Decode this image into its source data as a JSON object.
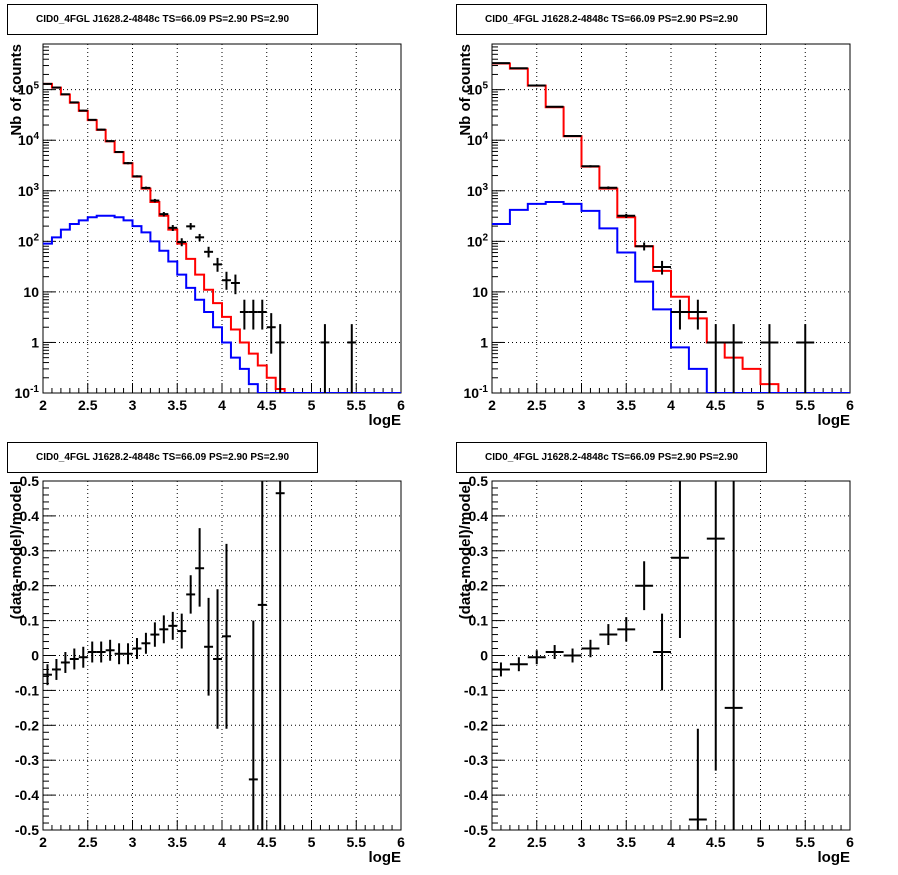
{
  "charts": [
    {
      "id": "p1",
      "title": "CID0_4FGL J1628.2-4848c TS=66.09 PS=2.90 PS=2.90",
      "type": "line",
      "xlabel": "logE",
      "ylabel": "Nb of counts",
      "xlim": [
        2,
        6
      ],
      "ylim": [
        0.1,
        800000
      ],
      "log_y": true,
      "grid": true,
      "x_ticks": [
        "2",
        "2.5",
        "3",
        "3.5",
        "4",
        "4.5",
        "5",
        "5.5",
        "6"
      ],
      "y_ticks": [
        "10^-1",
        "1",
        "10",
        "10^2",
        "10^3",
        "10^4",
        "10^5"
      ],
      "y_tick_values": [
        0.1,
        1,
        10,
        100,
        1000,
        10000,
        100000
      ],
      "bin_edges": [
        2.0,
        2.1,
        2.2,
        2.3,
        2.4,
        2.5,
        2.6,
        2.7,
        2.8,
        2.9,
        3.0,
        3.1,
        3.2,
        3.3,
        3.4,
        3.5,
        3.6,
        3.7,
        3.8,
        3.9,
        4.0,
        4.1,
        4.2,
        4.3,
        4.4,
        4.5,
        4.6,
        4.7,
        4.8,
        4.9,
        5.0,
        5.1,
        5.2,
        5.3,
        5.4,
        5.5,
        5.6,
        5.7,
        5.8,
        5.9,
        6.0
      ],
      "series": [
        {
          "color": "#ff0000",
          "values": [
            130000,
            110000,
            80000,
            55000,
            38000,
            25000,
            16000,
            9500,
            5800,
            3500,
            1900,
            1100,
            600,
            320,
            170,
            90,
            45,
            22,
            11,
            6,
            3.2,
            1.8,
            1.0,
            0.6,
            0.35,
            0.2,
            0.12,
            0.08,
            0.05,
            0.05,
            0.05,
            0.05,
            0.05,
            0.05,
            0.05,
            0.05,
            0.05,
            0.05,
            0.05,
            0.05
          ]
        },
        {
          "color": "#0000ff",
          "values": [
            90,
            120,
            170,
            220,
            260,
            300,
            320,
            320,
            300,
            260,
            200,
            150,
            100,
            65,
            40,
            22,
            12,
            7,
            4,
            2,
            1,
            0.5,
            0.3,
            0.15,
            0.05,
            0.05,
            0.05,
            0.05,
            0.05,
            0.05,
            0.05,
            0.05,
            0.05,
            0.05,
            0.05,
            0.05,
            0.05,
            0.05,
            0.05,
            0.05
          ]
        }
      ],
      "points": [
        {
          "x": 2.05,
          "y": 130000,
          "lo": 125000,
          "hi": 135000
        },
        {
          "x": 2.15,
          "y": 110000,
          "lo": 106000,
          "hi": 114000
        },
        {
          "x": 2.25,
          "y": 81000,
          "lo": 78000,
          "hi": 84000
        },
        {
          "x": 2.35,
          "y": 56000,
          "lo": 54000,
          "hi": 58000
        },
        {
          "x": 2.45,
          "y": 38500,
          "lo": 37000,
          "hi": 40000
        },
        {
          "x": 2.55,
          "y": 25300,
          "lo": 24500,
          "hi": 26100
        },
        {
          "x": 2.65,
          "y": 16200,
          "lo": 15600,
          "hi": 16800
        },
        {
          "x": 2.75,
          "y": 9600,
          "lo": 9200,
          "hi": 10000
        },
        {
          "x": 2.85,
          "y": 5850,
          "lo": 5600,
          "hi": 6100
        },
        {
          "x": 2.95,
          "y": 3520,
          "lo": 3350,
          "hi": 3700
        },
        {
          "x": 3.05,
          "y": 1930,
          "lo": 1840,
          "hi": 2020
        },
        {
          "x": 3.15,
          "y": 1140,
          "lo": 1070,
          "hi": 1210
        },
        {
          "x": 3.25,
          "y": 640,
          "lo": 590,
          "hi": 690
        },
        {
          "x": 3.35,
          "y": 345,
          "lo": 310,
          "hi": 380
        },
        {
          "x": 3.45,
          "y": 185,
          "lo": 160,
          "hi": 210
        },
        {
          "x": 3.55,
          "y": 97,
          "lo": 80,
          "hi": 115
        },
        {
          "x": 3.65,
          "y": 198,
          "lo": 170,
          "hi": 230
        },
        {
          "x": 3.75,
          "y": 120,
          "lo": 100,
          "hi": 140
        },
        {
          "x": 3.85,
          "y": 62,
          "lo": 48,
          "hi": 78
        },
        {
          "x": 3.95,
          "y": 35,
          "lo": 25,
          "hi": 47
        },
        {
          "x": 4.05,
          "y": 17,
          "lo": 11,
          "hi": 25
        },
        {
          "x": 4.15,
          "y": 15,
          "lo": 9,
          "hi": 22
        },
        {
          "x": 4.25,
          "y": 4,
          "lo": 1.8,
          "hi": 7
        },
        {
          "x": 4.35,
          "y": 4,
          "lo": 1.8,
          "hi": 7
        },
        {
          "x": 4.45,
          "y": 4,
          "lo": 1.8,
          "hi": 7
        },
        {
          "x": 4.55,
          "y": 2,
          "lo": 0.6,
          "hi": 3.8
        },
        {
          "x": 4.65,
          "y": 1,
          "lo": 0.1,
          "hi": 2.3
        },
        {
          "x": 5.15,
          "y": 1,
          "lo": 0.1,
          "hi": 2.3
        },
        {
          "x": 5.45,
          "y": 1,
          "lo": 0.1,
          "hi": 2.3
        }
      ]
    },
    {
      "id": "p2",
      "title": "CID0_4FGL J1628.2-4848c TS=66.09 PS=2.90 PS=2.90",
      "type": "line",
      "xlabel": "logE",
      "ylabel": "Nb of counts",
      "xlim": [
        2,
        6
      ],
      "ylim": [
        0.1,
        800000
      ],
      "log_y": true,
      "grid": true,
      "x_ticks": [
        "2",
        "2.5",
        "3",
        "3.5",
        "4",
        "4.5",
        "5",
        "5.5",
        "6"
      ],
      "y_ticks": [
        "10^-1",
        "1",
        "10",
        "10^2",
        "10^3",
        "10^4",
        "10^5"
      ],
      "y_tick_values": [
        0.1,
        1,
        10,
        100,
        1000,
        10000,
        100000
      ],
      "bin_edges": [
        2.0,
        2.2,
        2.4,
        2.6,
        2.8,
        3.0,
        3.2,
        3.4,
        3.6,
        3.8,
        4.0,
        4.2,
        4.4,
        4.6,
        4.8,
        5.0,
        5.2,
        5.4,
        5.6,
        5.8,
        6.0
      ],
      "series": [
        {
          "color": "#ff0000",
          "values": [
            330000,
            260000,
            120000,
            45000,
            12000,
            3000,
            1100,
            300,
            80,
            26,
            8,
            3,
            1,
            0.5,
            0.3,
            0.15,
            0.05,
            0.05,
            0.05,
            0.05
          ]
        },
        {
          "color": "#0000ff",
          "values": [
            220,
            420,
            550,
            600,
            550,
            400,
            180,
            60,
            16,
            4.5,
            0.8,
            0.3,
            0.05,
            0.05,
            0.05,
            0.05,
            0.05,
            0.05,
            0.05,
            0.05
          ]
        }
      ],
      "points": [
        {
          "x": 2.1,
          "y": 335000,
          "lo": 325000,
          "hi": 345000
        },
        {
          "x": 2.3,
          "y": 265000,
          "lo": 258000,
          "hi": 272000
        },
        {
          "x": 2.5,
          "y": 121000,
          "lo": 117000,
          "hi": 125000
        },
        {
          "x": 2.7,
          "y": 46000,
          "lo": 44500,
          "hi": 47500
        },
        {
          "x": 2.9,
          "y": 12100,
          "lo": 11600,
          "hi": 12600
        },
        {
          "x": 3.1,
          "y": 3050,
          "lo": 2900,
          "hi": 3200
        },
        {
          "x": 3.3,
          "y": 1150,
          "lo": 1080,
          "hi": 1220
        },
        {
          "x": 3.5,
          "y": 320,
          "lo": 290,
          "hi": 350
        },
        {
          "x": 3.7,
          "y": 80,
          "lo": 66,
          "hi": 95
        },
        {
          "x": 3.9,
          "y": 31,
          "lo": 22,
          "hi": 41
        },
        {
          "x": 4.1,
          "y": 4,
          "lo": 1.8,
          "hi": 7
        },
        {
          "x": 4.3,
          "y": 4,
          "lo": 1.8,
          "hi": 7
        },
        {
          "x": 4.5,
          "y": 1,
          "lo": 0.1,
          "hi": 2.3
        },
        {
          "x": 4.7,
          "y": 1,
          "lo": 0.1,
          "hi": 2.3
        },
        {
          "x": 5.1,
          "y": 1,
          "lo": 0.1,
          "hi": 2.3
        },
        {
          "x": 5.5,
          "y": 1,
          "lo": 0.1,
          "hi": 2.3
        }
      ]
    },
    {
      "id": "p3",
      "title": "CID0_4FGL J1628.2-4848c TS=66.09 PS=2.90 PS=2.90",
      "type": "scatter",
      "xlabel": "logE",
      "ylabel": "(data-model)/model",
      "xlim": [
        2,
        6
      ],
      "ylim": [
        -0.5,
        0.5
      ],
      "log_y": false,
      "grid": true,
      "x_ticks": [
        "2",
        "2.5",
        "3",
        "3.5",
        "4",
        "4.5",
        "5",
        "5.5",
        "6"
      ],
      "y_ticks": [
        "-0.5",
        "-0.4",
        "-0.3",
        "-0.2",
        "-0.1",
        "0",
        "0.1",
        "0.2",
        "0.3",
        "0.4",
        "0.5"
      ],
      "y_tick_values": [
        -0.5,
        -0.4,
        -0.3,
        -0.2,
        -0.1,
        0,
        0.1,
        0.2,
        0.3,
        0.4,
        0.5
      ],
      "half_width": 0.05,
      "points": [
        {
          "x": 2.05,
          "y": -0.055,
          "lo": -0.085,
          "hi": -0.025
        },
        {
          "x": 2.15,
          "y": -0.04,
          "lo": -0.07,
          "hi": -0.01
        },
        {
          "x": 2.25,
          "y": -0.02,
          "lo": -0.05,
          "hi": 0.01
        },
        {
          "x": 2.35,
          "y": -0.01,
          "lo": -0.04,
          "hi": 0.02
        },
        {
          "x": 2.45,
          "y": -0.005,
          "lo": -0.035,
          "hi": 0.025
        },
        {
          "x": 2.55,
          "y": 0.01,
          "lo": -0.02,
          "hi": 0.04
        },
        {
          "x": 2.65,
          "y": 0.01,
          "lo": -0.02,
          "hi": 0.04
        },
        {
          "x": 2.75,
          "y": 0.015,
          "lo": -0.015,
          "hi": 0.045
        },
        {
          "x": 2.85,
          "y": 0.005,
          "lo": -0.025,
          "hi": 0.035
        },
        {
          "x": 2.95,
          "y": 0.005,
          "lo": -0.025,
          "hi": 0.035
        },
        {
          "x": 3.05,
          "y": 0.02,
          "lo": -0.01,
          "hi": 0.05
        },
        {
          "x": 3.15,
          "y": 0.035,
          "lo": 0.005,
          "hi": 0.065
        },
        {
          "x": 3.25,
          "y": 0.06,
          "lo": 0.025,
          "hi": 0.095
        },
        {
          "x": 3.35,
          "y": 0.075,
          "lo": 0.035,
          "hi": 0.115
        },
        {
          "x": 3.45,
          "y": 0.085,
          "lo": 0.045,
          "hi": 0.125
        },
        {
          "x": 3.55,
          "y": 0.07,
          "lo": 0.02,
          "hi": 0.12
        },
        {
          "x": 3.65,
          "y": 0.175,
          "lo": 0.12,
          "hi": 0.23
        },
        {
          "x": 3.75,
          "y": 0.25,
          "lo": 0.14,
          "hi": 0.365
        },
        {
          "x": 3.85,
          "y": 0.025,
          "lo": -0.115,
          "hi": 0.165
        },
        {
          "x": 3.95,
          "y": -0.01,
          "lo": -0.21,
          "hi": 0.19
        },
        {
          "x": 4.05,
          "y": 0.055,
          "lo": -0.21,
          "hi": 0.32
        },
        {
          "x": 4.35,
          "y": -0.355,
          "lo": -0.5,
          "hi": 0.1
        },
        {
          "x": 4.45,
          "y": 0.145,
          "lo": -0.5,
          "hi": 0.5
        },
        {
          "x": 4.65,
          "y": 0.465,
          "lo": -0.5,
          "hi": 0.5
        }
      ]
    },
    {
      "id": "p4",
      "title": "CID0_4FGL J1628.2-4848c TS=66.09 PS=2.90 PS=2.90",
      "type": "scatter",
      "xlabel": "logE",
      "ylabel": "(data-model)/model",
      "xlim": [
        2,
        6
      ],
      "ylim": [
        -0.5,
        0.5
      ],
      "log_y": false,
      "grid": true,
      "x_ticks": [
        "2",
        "2.5",
        "3",
        "3.5",
        "4",
        "4.5",
        "5",
        "5.5",
        "6"
      ],
      "y_ticks": [
        "-0.5",
        "-0.4",
        "-0.3",
        "-0.2",
        "-0.1",
        "0",
        "0.1",
        "0.2",
        "0.3",
        "0.4",
        "0.5"
      ],
      "y_tick_values": [
        -0.5,
        -0.4,
        -0.3,
        -0.2,
        -0.1,
        0,
        0.1,
        0.2,
        0.3,
        0.4,
        0.5
      ],
      "half_width": 0.1,
      "points": [
        {
          "x": 2.1,
          "y": -0.04,
          "lo": -0.06,
          "hi": -0.02
        },
        {
          "x": 2.3,
          "y": -0.025,
          "lo": -0.045,
          "hi": -0.005
        },
        {
          "x": 2.5,
          "y": -0.005,
          "lo": -0.025,
          "hi": 0.015
        },
        {
          "x": 2.7,
          "y": 0.01,
          "lo": -0.01,
          "hi": 0.03
        },
        {
          "x": 2.9,
          "y": 0.0,
          "lo": -0.02,
          "hi": 0.02
        },
        {
          "x": 3.1,
          "y": 0.02,
          "lo": -0.005,
          "hi": 0.045
        },
        {
          "x": 3.3,
          "y": 0.06,
          "lo": 0.03,
          "hi": 0.09
        },
        {
          "x": 3.5,
          "y": 0.075,
          "lo": 0.04,
          "hi": 0.11
        },
        {
          "x": 3.7,
          "y": 0.2,
          "lo": 0.13,
          "hi": 0.27
        },
        {
          "x": 3.9,
          "y": 0.01,
          "lo": -0.1,
          "hi": 0.12
        },
        {
          "x": 4.1,
          "y": 0.28,
          "lo": 0.05,
          "hi": 0.5
        },
        {
          "x": 4.3,
          "y": -0.47,
          "lo": -0.5,
          "hi": -0.21
        },
        {
          "x": 4.5,
          "y": 0.335,
          "lo": -0.33,
          "hi": 0.5
        },
        {
          "x": 4.7,
          "y": -0.15,
          "lo": -0.5,
          "hi": 0.5
        }
      ]
    }
  ]
}
